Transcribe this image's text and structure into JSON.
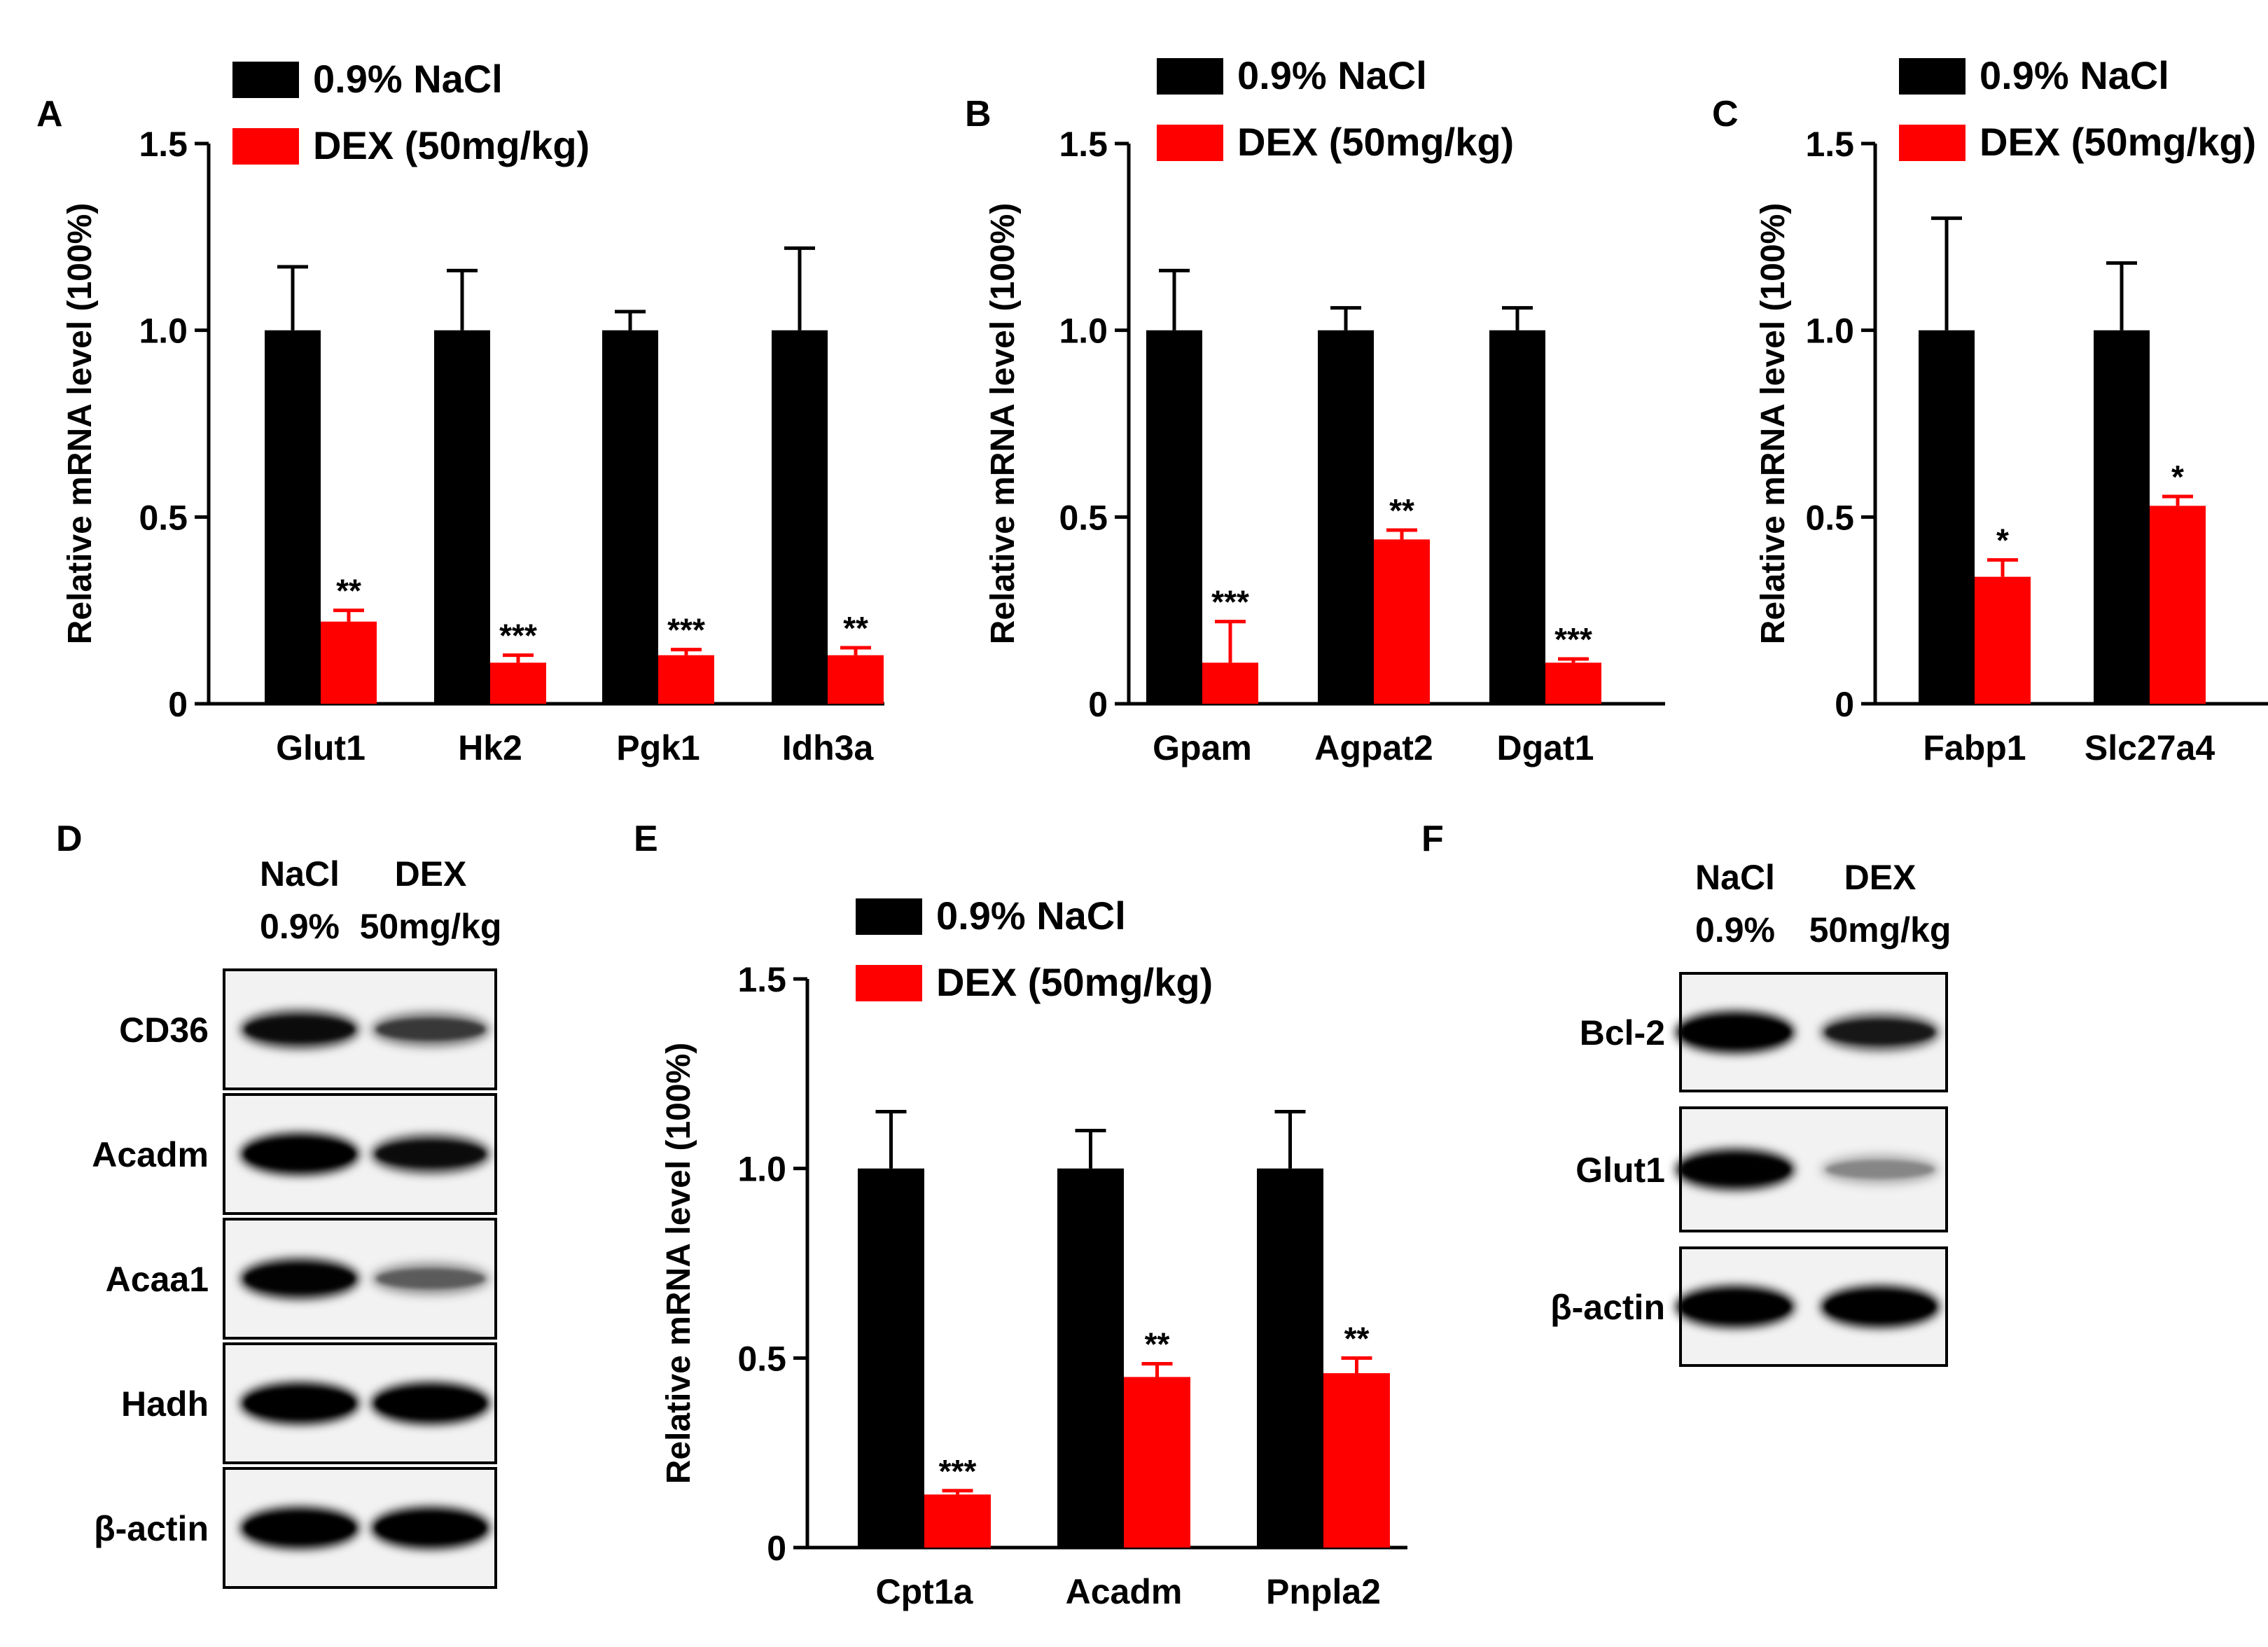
{
  "colors": {
    "control": "#000000",
    "treated": "#ff0000"
  },
  "chart_data": [
    {
      "panel": "A",
      "type": "bar",
      "ylabel": "Relative mRNA level (100%)",
      "ylim": [
        0,
        1.5
      ],
      "yticks": [
        "0",
        "0.5",
        "1.0",
        "1.5"
      ],
      "categories": [
        "Glut1",
        "Hk2",
        "Pgk1",
        "Idh3a"
      ],
      "legend": [
        "0.9% NaCl",
        "DEX (50mg/kg)"
      ],
      "legend_position": "top",
      "series": [
        {
          "name": "0.9% NaCl",
          "values": [
            1.0,
            1.0,
            1.0,
            1.0
          ],
          "error": [
            0.17,
            0.16,
            0.05,
            0.22
          ],
          "sig": [
            "",
            "",
            "",
            ""
          ]
        },
        {
          "name": "DEX (50mg/kg)",
          "values": [
            0.22,
            0.11,
            0.13,
            0.13
          ],
          "error": [
            0.03,
            0.02,
            0.015,
            0.02
          ],
          "sig": [
            "**",
            "***",
            "***",
            "**"
          ]
        }
      ]
    },
    {
      "panel": "B",
      "type": "bar",
      "ylabel": "Relative mRNA level (100%)",
      "ylim": [
        0,
        1.5
      ],
      "yticks": [
        "0",
        "0.5",
        "1.0",
        "1.5"
      ],
      "categories": [
        "Gpam",
        "Agpat2",
        "Dgat1"
      ],
      "legend": [
        "0.9% NaCl",
        "DEX (50mg/kg)"
      ],
      "legend_position": "top",
      "series": [
        {
          "name": "0.9% NaCl",
          "values": [
            1.0,
            1.0,
            1.0
          ],
          "error": [
            0.16,
            0.06,
            0.06
          ],
          "sig": [
            "",
            "",
            ""
          ]
        },
        {
          "name": "DEX (50mg/kg)",
          "values": [
            0.11,
            0.44,
            0.11
          ],
          "error": [
            0.11,
            0.025,
            0.01
          ],
          "sig": [
            "***",
            "**",
            "***"
          ]
        }
      ]
    },
    {
      "panel": "C",
      "type": "bar",
      "ylabel": "Relative mRNA level (100%)",
      "ylim": [
        0,
        1.5
      ],
      "yticks": [
        "0",
        "0.5",
        "1.0",
        "1.5"
      ],
      "categories": [
        "Fabp1",
        "Slc27a4"
      ],
      "legend": [
        "0.9% NaCl",
        "DEX (50mg/kg)"
      ],
      "legend_position": "top",
      "series": [
        {
          "name": "0.9% NaCl",
          "values": [
            1.0,
            1.0
          ],
          "error": [
            0.3,
            0.18
          ],
          "sig": [
            "",
            ""
          ]
        },
        {
          "name": "DEX (50mg/kg)",
          "values": [
            0.34,
            0.53
          ],
          "error": [
            0.045,
            0.025
          ],
          "sig": [
            "*",
            "*"
          ]
        }
      ]
    },
    {
      "panel": "E",
      "type": "bar",
      "ylabel": "Relative mRNA level (100%)",
      "ylim": [
        0,
        1.5
      ],
      "yticks": [
        "0",
        "0.5",
        "1.0",
        "1.5"
      ],
      "categories": [
        "Cpt1a",
        "Acadm",
        "Pnpla2"
      ],
      "legend": [
        "0.9% NaCl",
        "DEX (50mg/kg)"
      ],
      "legend_position": "top",
      "series": [
        {
          "name": "0.9% NaCl",
          "values": [
            1.0,
            1.0,
            1.0
          ],
          "error": [
            0.15,
            0.1,
            0.15
          ],
          "sig": [
            "",
            "",
            ""
          ]
        },
        {
          "name": "DEX (50mg/kg)",
          "values": [
            0.14,
            0.45,
            0.46
          ],
          "error": [
            0.01,
            0.035,
            0.04
          ],
          "sig": [
            "***",
            "**",
            "**"
          ]
        }
      ]
    }
  ],
  "blots": [
    {
      "panel": "D",
      "columns": [
        [
          "NaCl",
          "0.9%"
        ],
        [
          "DEX",
          "50mg/kg"
        ]
      ],
      "rows": [
        {
          "label": "CD36",
          "intensity": [
            0.75,
            0.45
          ]
        },
        {
          "label": "Acadm",
          "intensity": [
            1.0,
            0.75
          ]
        },
        {
          "label": "Acaa1",
          "intensity": [
            0.9,
            0.3
          ]
        },
        {
          "label": "Hadh",
          "intensity": [
            1.0,
            1.0
          ]
        },
        {
          "label": "β-actin",
          "intensity": [
            1.0,
            1.0
          ]
        }
      ]
    },
    {
      "panel": "F",
      "columns": [
        [
          "NaCl",
          "0.9%"
        ],
        [
          "DEX",
          "50mg/kg"
        ]
      ],
      "rows": [
        {
          "label": "Bcl-2",
          "intensity": [
            1.0,
            0.65
          ]
        },
        {
          "label": "Glut1",
          "intensity": [
            0.95,
            0.15
          ]
        },
        {
          "label": "β-actin",
          "intensity": [
            1.0,
            1.0
          ]
        }
      ]
    }
  ]
}
